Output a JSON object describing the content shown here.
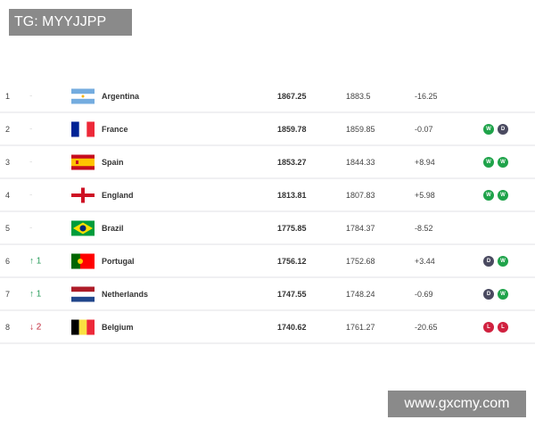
{
  "watermarks": {
    "top": "TG: MYYJJPP",
    "bottom": "www.gxcmy.com"
  },
  "colors": {
    "win": "#1fa34a",
    "draw": "#4a4a60",
    "loss": "#d0213f",
    "up": "#2a9d5c",
    "down": "#c0283a"
  },
  "rows": [
    {
      "rank": "1",
      "move": "-",
      "dir": "same",
      "country": "Argentina",
      "flag": "argentina-flag",
      "points": "1867.25",
      "prev": "1883.5",
      "diff": "-16.25",
      "form": []
    },
    {
      "rank": "2",
      "move": "-",
      "dir": "same",
      "country": "France",
      "flag": "france-flag",
      "points": "1859.78",
      "prev": "1859.85",
      "diff": "-0.07",
      "form": [
        "W",
        "D"
      ]
    },
    {
      "rank": "3",
      "move": "-",
      "dir": "same",
      "country": "Spain",
      "flag": "spain-flag",
      "points": "1853.27",
      "prev": "1844.33",
      "diff": "+8.94",
      "form": [
        "W",
        "W"
      ]
    },
    {
      "rank": "4",
      "move": "-",
      "dir": "same",
      "country": "England",
      "flag": "england-flag",
      "points": "1813.81",
      "prev": "1807.83",
      "diff": "+5.98",
      "form": [
        "W",
        "W"
      ]
    },
    {
      "rank": "5",
      "move": "-",
      "dir": "same",
      "country": "Brazil",
      "flag": "brazil-flag",
      "points": "1775.85",
      "prev": "1784.37",
      "diff": "-8.52",
      "form": []
    },
    {
      "rank": "6",
      "move": "↑ 1",
      "dir": "up",
      "country": "Portugal",
      "flag": "portugal-flag",
      "points": "1756.12",
      "prev": "1752.68",
      "diff": "+3.44",
      "form": [
        "D",
        "W"
      ]
    },
    {
      "rank": "7",
      "move": "↑ 1",
      "dir": "up",
      "country": "Netherlands",
      "flag": "netherlands-flag",
      "points": "1747.55",
      "prev": "1748.24",
      "diff": "-0.69",
      "form": [
        "D",
        "W"
      ]
    },
    {
      "rank": "8",
      "move": "↓ 2",
      "dir": "down",
      "country": "Belgium",
      "flag": "belgium-flag",
      "points": "1740.62",
      "prev": "1761.27",
      "diff": "-20.65",
      "form": [
        "L",
        "L"
      ]
    }
  ]
}
